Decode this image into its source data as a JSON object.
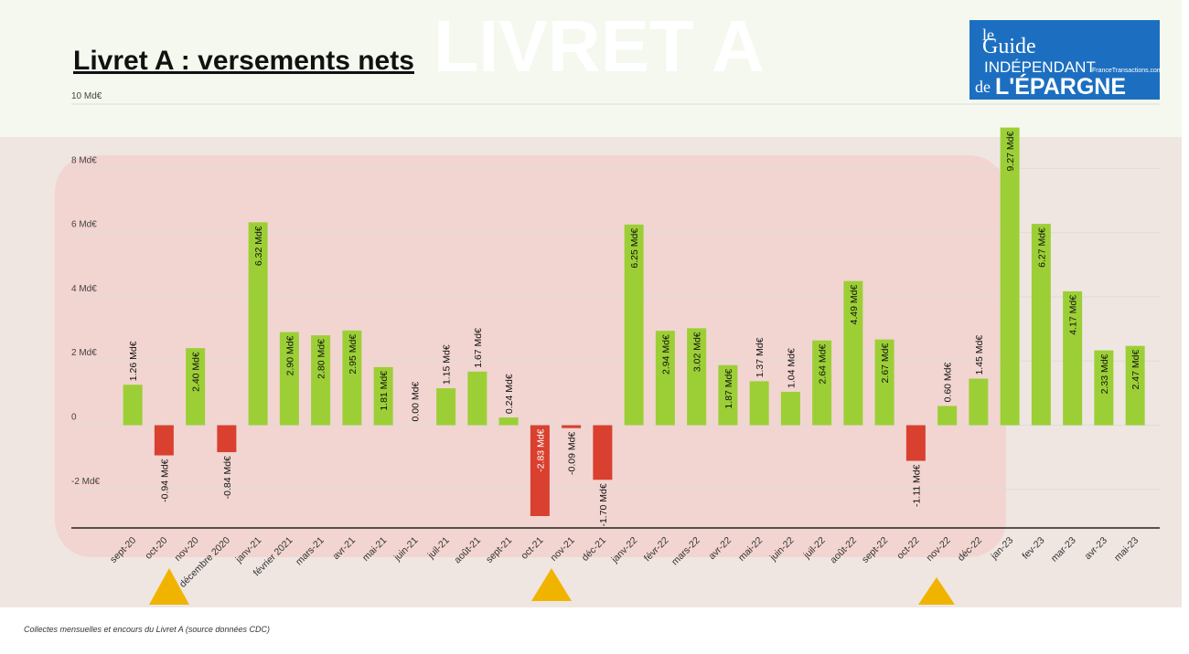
{
  "chart_data": {
    "type": "bar",
    "title": "Livret A : versements nets",
    "categories": [
      "sept-20",
      "oct-20",
      "nov-20",
      "décembre 2020",
      "janv-21",
      "février 2021",
      "mars-21",
      "avr-21",
      "mai-21",
      "juin-21",
      "juil-21",
      "août-21",
      "sept-21",
      "oct-21",
      "nov-21",
      "déc-21",
      "janv-22",
      "févr-22",
      "mars-22",
      "avr-22",
      "mai-22",
      "juin-22",
      "juil-22",
      "août-22",
      "sept-22",
      "oct-22",
      "nov-22",
      "déc-22",
      "jan-23",
      "fev-23",
      "mar-23",
      "avr-23",
      "mai-23"
    ],
    "values": [
      1.26,
      -0.94,
      2.4,
      -0.84,
      6.32,
      2.9,
      2.8,
      2.95,
      1.81,
      0.0,
      1.15,
      1.67,
      0.24,
      -2.83,
      -0.09,
      -1.7,
      6.25,
      2.94,
      3.02,
      1.87,
      1.37,
      1.04,
      2.64,
      4.49,
      2.67,
      -1.11,
      0.6,
      1.45,
      9.27,
      6.27,
      4.17,
      2.33,
      2.47
    ],
    "value_labels": [
      "1.26 Md€",
      "-0.94 Md€",
      "2.40 Md€",
      "-0.84 Md€",
      "6.32 Md€",
      "2.90 Md€",
      "2.80 Md€",
      "2.95 Md€",
      "1.81 Md€",
      "0.00 Md€",
      "1.15 Md€",
      "1.67 Md€",
      "0.24 Md€",
      "-2.83 Md€",
      "-0.09 Md€",
      "-1.70 Md€",
      "6.25 Md€",
      "2.94 Md€",
      "3.02 Md€",
      "1.87 Md€",
      "1.37 Md€",
      "1.04 Md€",
      "2.64 Md€",
      "4.49 Md€",
      "2.67 Md€",
      "-1.11 Md€",
      "0.60 Md€",
      "1.45 Md€",
      "9.27 Md€",
      "6.27 Md€",
      "4.17 Md€",
      "2.33 Md€",
      "2.47 Md€"
    ],
    "color": "#9ccf36",
    "negative_color": "#d9402f",
    "ylim": [
      -3.2,
      10
    ],
    "yticks": [
      {
        "value": -2,
        "label": "-2 Md€"
      },
      0,
      {
        "value": 2,
        "label": "2 Md€"
      },
      {
        "value": 4,
        "label": "4 Md€"
      },
      {
        "value": 6,
        "label": "6 Md€"
      },
      {
        "value": 8,
        "label": "8 Md€"
      },
      {
        "value": 10,
        "label": "10 Md€"
      }
    ],
    "grid": true
  },
  "watermark": "LIVRET A",
  "footnote": "Collectes mensuelles et encours du Livret A (source données CDC)",
  "logo": {
    "le": "le",
    "guide": "Guide",
    "independant": "INDÉPENDANT",
    "de": "de",
    "epargne": "L'ÉPARGNE",
    "site": "FranceTransactions.com"
  }
}
